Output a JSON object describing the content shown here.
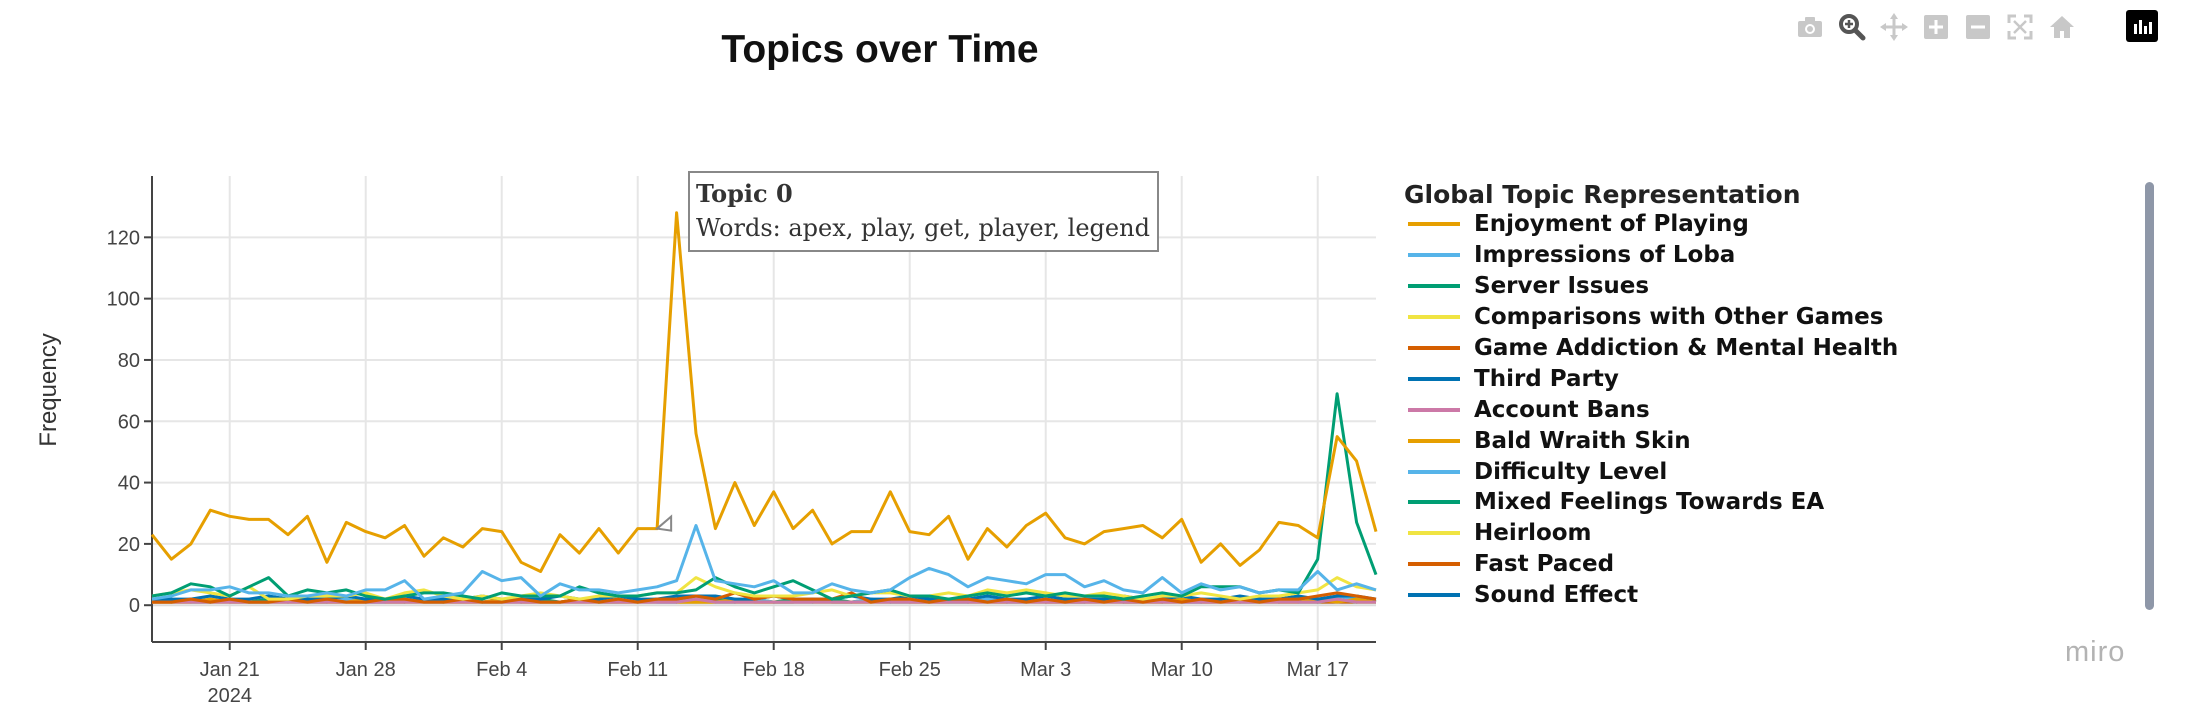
{
  "title": "Topics over Time",
  "modebar": {
    "icons": [
      "camera-icon",
      "zoom-icon",
      "pan-icon",
      "zoom-in-icon",
      "zoom-out-icon",
      "autoscale-icon",
      "home-icon",
      "plotly-logo-icon"
    ]
  },
  "watermark": "miro",
  "tooltip": {
    "title": "Topic 0",
    "words": "Words: apex, play, get, player, legend",
    "series_index": 0,
    "x": "2024-02-12"
  },
  "legend": {
    "title": "Global Topic Representation"
  },
  "chart_data": {
    "type": "line",
    "ylabel": "Frequency",
    "xlabel": "",
    "x_start": "2024-01-17",
    "x_end": "2024-03-20",
    "ylim": [
      -12,
      140
    ],
    "yticks": [
      0,
      20,
      40,
      60,
      80,
      100,
      120
    ],
    "xticks": [
      {
        "date": "2024-01-21",
        "label": "Jan 21",
        "sublabel": "2024"
      },
      {
        "date": "2024-01-28",
        "label": "Jan 28",
        "sublabel": ""
      },
      {
        "date": "2024-02-04",
        "label": "Feb 4",
        "sublabel": ""
      },
      {
        "date": "2024-02-11",
        "label": "Feb 11",
        "sublabel": ""
      },
      {
        "date": "2024-02-18",
        "label": "Feb 18",
        "sublabel": ""
      },
      {
        "date": "2024-02-25",
        "label": "Feb 25",
        "sublabel": ""
      },
      {
        "date": "2024-03-03",
        "label": "Mar 3",
        "sublabel": ""
      },
      {
        "date": "2024-03-10",
        "label": "Mar 10",
        "sublabel": ""
      },
      {
        "date": "2024-03-17",
        "label": "Mar 17",
        "sublabel": ""
      }
    ],
    "grid": true,
    "legend_position": "right",
    "series": [
      {
        "name": "Enjoyment of Playing",
        "color": "#E69F00",
        "values": [
          23,
          15,
          20,
          31,
          29,
          28,
          28,
          23,
          29,
          14,
          27,
          24,
          22,
          26,
          16,
          22,
          19,
          25,
          24,
          14,
          11,
          23,
          17,
          25,
          17,
          25,
          25,
          128,
          56,
          25,
          40,
          26,
          37,
          25,
          31,
          20,
          24,
          24,
          37,
          24,
          23,
          29,
          15,
          25,
          19,
          26,
          30,
          22,
          20,
          24,
          25,
          26,
          22,
          28,
          14,
          20,
          13,
          18,
          27,
          26,
          22,
          55,
          47,
          24
        ]
      },
      {
        "name": "Impressions of Loba",
        "color": "#56B4E9",
        "values": [
          2,
          3,
          5,
          5,
          6,
          4,
          4,
          3,
          3,
          4,
          3,
          5,
          5,
          8,
          2,
          3,
          4,
          11,
          8,
          9,
          3,
          7,
          5,
          5,
          4,
          5,
          6,
          8,
          26,
          8,
          7,
          6,
          8,
          4,
          4,
          7,
          5,
          4,
          5,
          9,
          12,
          10,
          6,
          9,
          8,
          7,
          10,
          10,
          6,
          8,
          5,
          4,
          9,
          4,
          7,
          5,
          6,
          4,
          5,
          5,
          11,
          5,
          7,
          5
        ]
      },
      {
        "name": "Server Issues",
        "color": "#009E73",
        "values": [
          3,
          4,
          7,
          6,
          3,
          6,
          9,
          3,
          5,
          4,
          5,
          3,
          2,
          3,
          4,
          4,
          3,
          2,
          4,
          3,
          3,
          3,
          6,
          4,
          3,
          3,
          4,
          4,
          5,
          9,
          6,
          4,
          6,
          8,
          5,
          2,
          3,
          4,
          5,
          3,
          3,
          2,
          3,
          4,
          3,
          4,
          3,
          4,
          3,
          3,
          2,
          3,
          4,
          3,
          6,
          6,
          6,
          4,
          5,
          4,
          15,
          69,
          27,
          10
        ]
      },
      {
        "name": "Comparisons with Other Games",
        "color": "#F0E442",
        "values": [
          3,
          4,
          5,
          4,
          3,
          6,
          2,
          2,
          3,
          3,
          3,
          4,
          2,
          4,
          5,
          3,
          2,
          3,
          2,
          3,
          4,
          3,
          2,
          3,
          3,
          3,
          4,
          4,
          9,
          6,
          4,
          3,
          3,
          3,
          4,
          5,
          3,
          4,
          4,
          3,
          3,
          4,
          3,
          5,
          4,
          5,
          4,
          3,
          3,
          4,
          3,
          2,
          3,
          3,
          4,
          3,
          2,
          3,
          3,
          4,
          5,
          9,
          6,
          5
        ]
      },
      {
        "name": "Game Addiction & Mental Health",
        "color": "#D55E00",
        "values": [
          1,
          1,
          2,
          1,
          2,
          1,
          1,
          2,
          1,
          2,
          1,
          1,
          2,
          2,
          1,
          1,
          2,
          1,
          1,
          2,
          1,
          1,
          2,
          1,
          2,
          1,
          2,
          2,
          3,
          2,
          4,
          2,
          3,
          2,
          2,
          2,
          4,
          1,
          2,
          2,
          1,
          2,
          2,
          1,
          2,
          1,
          2,
          1,
          2,
          1,
          2,
          1,
          2,
          1,
          2,
          1,
          2,
          1,
          2,
          2,
          3,
          4,
          3,
          2
        ]
      },
      {
        "name": "Third Party",
        "color": "#0072B2",
        "values": [
          2,
          2,
          2,
          3,
          2,
          2,
          3,
          2,
          2,
          2,
          3,
          2,
          2,
          3,
          2,
          2,
          2,
          3,
          2,
          2,
          2,
          3,
          2,
          2,
          3,
          2,
          2,
          3,
          3,
          3,
          2,
          2,
          3,
          2,
          2,
          2,
          3,
          2,
          2,
          3,
          2,
          2,
          2,
          3,
          2,
          2,
          3,
          2,
          2,
          2,
          3,
          2,
          2,
          3,
          2,
          2,
          3,
          2,
          2,
          3,
          2,
          3,
          3,
          2
        ]
      },
      {
        "name": "Account Bans",
        "color": "#CC79A7",
        "values": [
          1,
          1,
          1,
          1,
          1,
          1,
          1,
          1,
          1,
          1,
          1,
          1,
          1,
          1,
          1,
          1,
          1,
          1,
          1,
          1,
          1,
          1,
          1,
          1,
          1,
          1,
          1,
          1,
          2,
          1,
          1,
          1,
          1,
          1,
          1,
          1,
          1,
          1,
          1,
          1,
          1,
          1,
          1,
          1,
          1,
          1,
          1,
          1,
          1,
          1,
          1,
          1,
          1,
          1,
          1,
          1,
          1,
          1,
          1,
          1,
          1,
          2,
          1,
          1
        ]
      },
      {
        "name": "Bald Wraith Skin",
        "color": "#E69F00",
        "values": [
          1,
          1,
          1,
          2,
          1,
          1,
          1,
          2,
          1,
          1,
          1,
          2,
          1,
          1,
          2,
          1,
          1,
          1,
          2,
          1,
          1,
          1,
          2,
          1,
          1,
          1,
          2,
          1,
          1,
          1,
          2,
          1,
          1,
          1,
          2,
          1,
          1,
          1,
          2,
          1,
          1,
          1,
          2,
          1,
          1,
          2,
          1,
          1,
          1,
          2,
          1,
          1,
          1,
          2,
          1,
          1,
          1,
          2,
          1,
          1,
          2,
          1,
          2,
          1
        ]
      },
      {
        "name": "Difficulty Level",
        "color": "#56B4E9",
        "values": [
          1,
          2,
          1,
          1,
          2,
          1,
          1,
          2,
          1,
          1,
          2,
          1,
          1,
          2,
          1,
          1,
          2,
          1,
          1,
          2,
          1,
          1,
          2,
          1,
          1,
          2,
          1,
          1,
          2,
          1,
          1,
          2,
          1,
          1,
          2,
          1,
          1,
          2,
          1,
          1,
          2,
          1,
          1,
          2,
          1,
          1,
          2,
          1,
          1,
          2,
          1,
          1,
          2,
          1,
          1,
          2,
          1,
          1,
          2,
          1,
          1,
          3,
          2,
          1
        ]
      },
      {
        "name": "Mixed Feelings Towards EA",
        "color": "#009E73",
        "values": [
          2,
          1,
          2,
          1,
          2,
          1,
          2,
          1,
          2,
          1,
          2,
          1,
          2,
          1,
          2,
          1,
          2,
          1,
          2,
          1,
          2,
          1,
          2,
          1,
          2,
          1,
          2,
          1,
          3,
          2,
          1,
          2,
          1,
          2,
          1,
          2,
          1,
          2,
          1,
          2,
          1,
          2,
          1,
          2,
          1,
          2,
          1,
          2,
          1,
          2,
          1,
          2,
          1,
          2,
          1,
          2,
          1,
          2,
          1,
          2,
          1,
          2,
          1,
          2
        ]
      },
      {
        "name": "Heirloom",
        "color": "#F0E442",
        "values": [
          1,
          1,
          1,
          1,
          1,
          2,
          1,
          1,
          1,
          1,
          1,
          1,
          2,
          1,
          1,
          1,
          1,
          1,
          1,
          2,
          1,
          1,
          1,
          1,
          1,
          1,
          2,
          1,
          1,
          1,
          1,
          1,
          1,
          2,
          1,
          1,
          1,
          1,
          1,
          1,
          2,
          1,
          1,
          1,
          1,
          1,
          1,
          2,
          1,
          1,
          1,
          1,
          1,
          1,
          2,
          1,
          1,
          1,
          1,
          1,
          1,
          2,
          1,
          1
        ]
      },
      {
        "name": "Fast Paced",
        "color": "#D55E00",
        "values": [
          1,
          1,
          1,
          1,
          1,
          1,
          1,
          1,
          1,
          1,
          1,
          1,
          1,
          1,
          1,
          1,
          1,
          1,
          1,
          1,
          1,
          1,
          1,
          1,
          1,
          1,
          1,
          1,
          1,
          1,
          1,
          1,
          1,
          1,
          1,
          1,
          1,
          1,
          1,
          1,
          1,
          1,
          1,
          1,
          1,
          1,
          1,
          1,
          1,
          1,
          1,
          1,
          1,
          1,
          1,
          1,
          1,
          1,
          1,
          1,
          1,
          1,
          1,
          1
        ]
      },
      {
        "name": "Sound Effect",
        "color": "#0072B2",
        "values": [
          1,
          1,
          1,
          1,
          1,
          1,
          1,
          1,
          1,
          1,
          1,
          1,
          1,
          1,
          1,
          1,
          1,
          1,
          1,
          1,
          1,
          1,
          1,
          1,
          1,
          1,
          1,
          1,
          1,
          1,
          1,
          1,
          1,
          1,
          1,
          1,
          1,
          1,
          1,
          1,
          1,
          1,
          1,
          1,
          1,
          1,
          1,
          1,
          1,
          1,
          1,
          1,
          1,
          1,
          1,
          1,
          1,
          1,
          1,
          1,
          1,
          1,
          1,
          1
        ]
      }
    ]
  }
}
